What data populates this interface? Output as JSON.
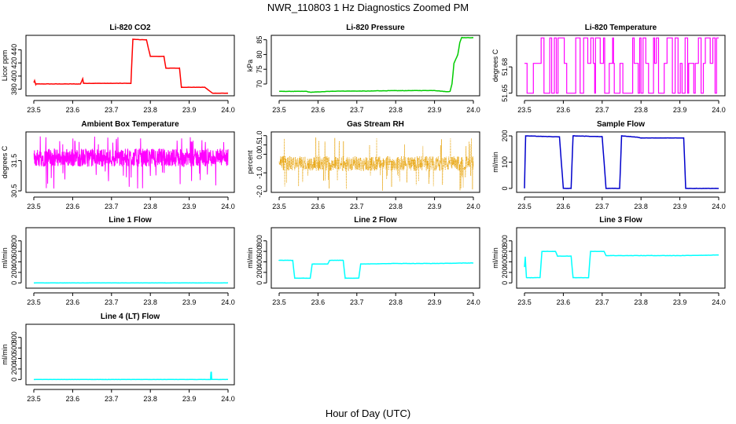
{
  "figure": {
    "title": "NWR_110803  1 Hz Diagnostics Zoomed PM",
    "xlabel": "Hour of Day (UTC)"
  },
  "chart_data": [
    {
      "type": "line",
      "title": "Li-820 CO2",
      "ylabel": "Licor ppm",
      "xlim": [
        23.5,
        24.0
      ],
      "ylim": [
        370,
        462
      ],
      "xticks": [
        "23.5",
        "23.6",
        "23.7",
        "23.8",
        "23.9",
        "24.0"
      ],
      "yticks": [
        "380",
        "400",
        "420",
        "440"
      ],
      "color": "#ff0000",
      "series": [
        {
          "x": [
            23.5,
            23.502,
            23.505,
            23.506,
            23.62,
            23.626,
            23.628,
            23.75,
            23.755,
            23.79,
            23.8,
            23.835,
            23.84,
            23.875,
            23.88,
            23.94,
            23.96,
            24.0
          ],
          "y": [
            390,
            393,
            387,
            388,
            388,
            396,
            389,
            389,
            456,
            455,
            430,
            430,
            412,
            412,
            383,
            383,
            374,
            374
          ]
        }
      ]
    },
    {
      "type": "line",
      "title": "Li-820 Pressure",
      "ylabel": "kPa",
      "xlim": [
        23.5,
        24.0
      ],
      "ylim": [
        66,
        86.5
      ],
      "xticks": [
        "23.5",
        "23.6",
        "23.7",
        "23.8",
        "23.9",
        "24.0"
      ],
      "yticks": [
        "70",
        "75",
        "80",
        "85"
      ],
      "color": "#00cc00",
      "series": [
        {
          "x": [
            23.5,
            23.57,
            23.58,
            23.63,
            23.65,
            23.74,
            23.75,
            23.9,
            23.93,
            23.94,
            23.945,
            23.95,
            23.96,
            23.965,
            23.97,
            23.975,
            24.0
          ],
          "y": [
            67.5,
            67.5,
            67.2,
            67.5,
            67.6,
            67.6,
            67.7,
            67.8,
            67.4,
            67.5,
            70,
            77,
            80,
            84,
            85.8,
            85.7,
            85.7
          ]
        }
      ]
    },
    {
      "type": "line",
      "title": "Li-820 Temperature",
      "ylabel": "degrees C",
      "xlim": [
        23.5,
        24.0
      ],
      "ylim": [
        51.647,
        51.716
      ],
      "xticks": [
        "23.5",
        "23.6",
        "23.7",
        "23.8",
        "23.9",
        "24.0"
      ],
      "yticks": [
        "51.65",
        "51.68"
      ],
      "color": "#ff00ff",
      "series": [
        {
          "name": "levels",
          "values": [
            51.65,
            51.684,
            51.713
          ]
        }
      ]
    },
    {
      "type": "line",
      "title": "Ambient Box Temperature",
      "ylabel": "degrees C",
      "xlim": [
        23.5,
        24.0
      ],
      "ylim": [
        30.45,
        32.45
      ],
      "xticks": [
        "23.5",
        "23.6",
        "23.7",
        "23.8",
        "23.9",
        "24.0"
      ],
      "yticks": [
        "30.5",
        "31.5"
      ],
      "color": "#ff00ff",
      "series": [
        {
          "name": "noise",
          "center": 31.6,
          "spread": 0.3,
          "low": 30.55,
          "high": 32.3
        }
      ]
    },
    {
      "type": "scatter",
      "title": "Gas Stream RH",
      "ylabel": "percent",
      "xlim": [
        23.5,
        24.0
      ],
      "ylim": [
        -2.05,
        1.2
      ],
      "xticks": [
        "23.5",
        "23.6",
        "23.7",
        "23.8",
        "23.9",
        "24.0"
      ],
      "yticks": [
        "-2.0",
        "-1.0",
        "0.0",
        "0.5",
        "1.0"
      ],
      "color": "#e69f00",
      "series": [
        {
          "name": "noise",
          "center": -0.5,
          "spread": 0.4,
          "low": -2.0,
          "high": 1.0
        }
      ]
    },
    {
      "type": "line",
      "title": "Sample Flow",
      "ylabel": "ml/min",
      "xlim": [
        23.5,
        24.0
      ],
      "ylim": [
        -15,
        215
      ],
      "xticks": [
        "23.5",
        "23.6",
        "23.7",
        "23.8",
        "23.9",
        "24.0"
      ],
      "yticks": [
        "0",
        "100",
        "200"
      ],
      "color": "#0000cc",
      "series": [
        {
          "x": [
            23.5,
            23.503,
            23.59,
            23.6,
            23.62,
            23.625,
            23.7,
            23.71,
            23.745,
            23.75,
            23.79,
            23.8,
            23.91,
            23.915,
            24.0
          ],
          "y": [
            0,
            200,
            196,
            0,
            0,
            200,
            197,
            0,
            0,
            200,
            195,
            192,
            192,
            0,
            0
          ]
        }
      ]
    },
    {
      "type": "line",
      "title": "Line 1 Flow",
      "ylabel": "ml/min",
      "xlim": [
        23.5,
        24.0
      ],
      "ylim": [
        -100,
        1050
      ],
      "xticks": [
        "23.5",
        "23.6",
        "23.7",
        "23.8",
        "23.9",
        "24.0"
      ],
      "yticks": [
        "0",
        "200",
        "400",
        "600",
        "800"
      ],
      "color": "#00ffff",
      "series": [
        {
          "x": [
            23.5,
            24.0
          ],
          "y": [
            0,
            0
          ]
        }
      ]
    },
    {
      "type": "line",
      "title": "Line 2 Flow",
      "ylabel": "ml/min",
      "xlim": [
        23.5,
        24.0
      ],
      "ylim": [
        -100,
        1050
      ],
      "xticks": [
        "23.5",
        "23.6",
        "23.7",
        "23.8",
        "23.9",
        "24.0"
      ],
      "yticks": [
        "0",
        "200",
        "400",
        "600",
        "800"
      ],
      "color": "#00ffff",
      "series": [
        {
          "x": [
            23.5,
            23.5,
            23.535,
            23.54,
            23.58,
            23.585,
            23.625,
            23.63,
            23.665,
            23.67,
            23.705,
            23.71,
            23.8,
            23.9,
            24.0
          ],
          "y": [
            420,
            430,
            430,
            90,
            90,
            360,
            360,
            430,
            430,
            90,
            90,
            360,
            370,
            370,
            380
          ]
        }
      ]
    },
    {
      "type": "line",
      "title": "Line 3 Flow",
      "ylabel": "ml/min",
      "xlim": [
        23.5,
        24.0
      ],
      "ylim": [
        -100,
        1050
      ],
      "xticks": [
        "23.5",
        "23.6",
        "23.7",
        "23.8",
        "23.9",
        "24.0"
      ],
      "yticks": [
        "0",
        "200",
        "400",
        "600",
        "800"
      ],
      "color": "#00ffff",
      "series": [
        {
          "x": [
            23.5,
            23.502,
            23.505,
            23.54,
            23.545,
            23.58,
            23.585,
            23.62,
            23.625,
            23.665,
            23.67,
            23.705,
            23.71,
            23.8,
            23.9,
            24.0
          ],
          "y": [
            300,
            500,
            100,
            100,
            600,
            600,
            510,
            510,
            100,
            100,
            600,
            600,
            520,
            520,
            520,
            530
          ]
        }
      ]
    },
    {
      "type": "line",
      "title": "Line 4 (LT) Flow",
      "ylabel": "ml/min",
      "xlim": [
        23.5,
        24.0
      ],
      "ylim": [
        -100,
        1050
      ],
      "xticks": [
        "23.5",
        "23.6",
        "23.7",
        "23.8",
        "23.9",
        "24.0"
      ],
      "yticks": [
        "0",
        "200",
        "400",
        "600",
        "800"
      ],
      "color": "#00ffff",
      "series": [
        {
          "x": [
            23.5,
            23.955,
            23.956,
            23.957,
            23.958,
            23.96,
            24.0
          ],
          "y": [
            0,
            0,
            140,
            140,
            0,
            0,
            0
          ]
        }
      ]
    }
  ]
}
